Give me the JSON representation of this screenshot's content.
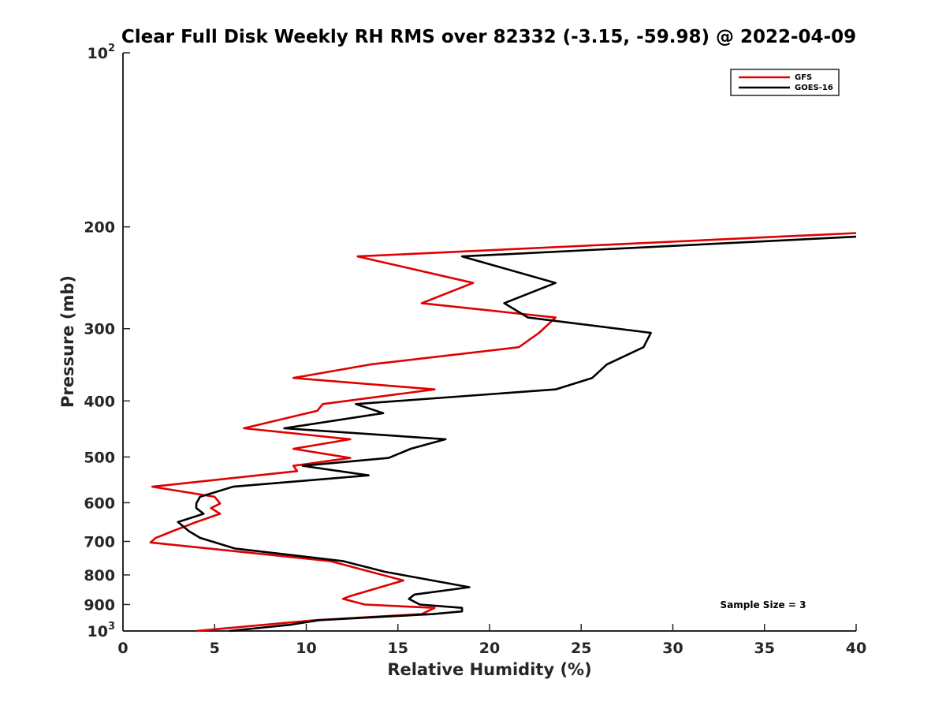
{
  "chart_data": {
    "type": "line",
    "title": "Clear Full Disk Weekly RH RMS over 82332 (-3.15, -59.98) @ 2022-04-09",
    "xlabel": "Relative Humidity (%)",
    "ylabel": "Pressure (mb)",
    "xlim": [
      0,
      40
    ],
    "ylim": [
      100,
      1000
    ],
    "y_scale": "log",
    "y_reversed": true,
    "grid": false,
    "legend_placement": "top-right",
    "x_ticks": [
      "0",
      "5",
      "10",
      "15",
      "20",
      "25",
      "30",
      "35",
      "40"
    ],
    "y_ticks": [
      {
        "value": 100,
        "base": "10",
        "exp": "2"
      },
      {
        "value": 200,
        "label": "200"
      },
      {
        "value": 300,
        "label": "300"
      },
      {
        "value": 400,
        "label": "400"
      },
      {
        "value": 500,
        "label": "500"
      },
      {
        "value": 600,
        "label": "600"
      },
      {
        "value": 700,
        "label": "700"
      },
      {
        "value": 800,
        "label": "800"
      },
      {
        "value": 900,
        "label": "900"
      },
      {
        "value": 1000,
        "base": "10",
        "exp": "3"
      }
    ],
    "annotation": "Sample Size = 3",
    "series": [
      {
        "name": "GFS",
        "color": "#e00000",
        "points": [
          [
            40.0,
            205
          ],
          [
            12.8,
            225
          ],
          [
            19.1,
            250
          ],
          [
            16.3,
            271
          ],
          [
            23.6,
            287
          ],
          [
            22.7,
            305
          ],
          [
            21.6,
            323
          ],
          [
            13.5,
            346
          ],
          [
            9.3,
            365
          ],
          [
            17.0,
            382
          ],
          [
            10.9,
            405
          ],
          [
            10.6,
            416
          ],
          [
            6.6,
            446
          ],
          [
            12.4,
            466
          ],
          [
            9.3,
            484
          ],
          [
            12.4,
            502
          ],
          [
            9.3,
            518
          ],
          [
            9.5,
            529
          ],
          [
            1.6,
            563
          ],
          [
            5.0,
            586
          ],
          [
            5.3,
            602
          ],
          [
            4.8,
            613
          ],
          [
            5.3,
            627
          ],
          [
            4.0,
            648
          ],
          [
            2.7,
            672
          ],
          [
            1.8,
            690
          ],
          [
            1.5,
            703
          ],
          [
            11.3,
            757
          ],
          [
            15.3,
            818
          ],
          [
            12.4,
            870
          ],
          [
            12.0,
            880
          ],
          [
            13.2,
            900
          ],
          [
            17.0,
            912
          ],
          [
            16.3,
            935
          ],
          [
            10.5,
            958
          ],
          [
            4.0,
            1000
          ]
        ]
      },
      {
        "name": "GOES-16",
        "color": "#000000",
        "points": [
          [
            40.0,
            208
          ],
          [
            18.5,
            225
          ],
          [
            23.6,
            250
          ],
          [
            20.8,
            271
          ],
          [
            22.1,
            287
          ],
          [
            28.8,
            305
          ],
          [
            28.4,
            323
          ],
          [
            26.4,
            346
          ],
          [
            25.6,
            365
          ],
          [
            23.6,
            382
          ],
          [
            12.7,
            405
          ],
          [
            14.2,
            420
          ],
          [
            8.8,
            446
          ],
          [
            17.6,
            466
          ],
          [
            15.7,
            484
          ],
          [
            14.5,
            502
          ],
          [
            9.8,
            518
          ],
          [
            13.4,
            538
          ],
          [
            6.0,
            563
          ],
          [
            4.2,
            586
          ],
          [
            4.0,
            602
          ],
          [
            4.0,
            613
          ],
          [
            4.4,
            627
          ],
          [
            3.0,
            648
          ],
          [
            3.6,
            672
          ],
          [
            4.2,
            690
          ],
          [
            6.1,
            720
          ],
          [
            12.0,
            757
          ],
          [
            14.3,
            790
          ],
          [
            16.9,
            818
          ],
          [
            18.9,
            840
          ],
          [
            15.9,
            865
          ],
          [
            15.6,
            880
          ],
          [
            16.2,
            900
          ],
          [
            18.5,
            912
          ],
          [
            18.5,
            925
          ],
          [
            16.9,
            935
          ],
          [
            10.7,
            958
          ],
          [
            9.2,
            975
          ],
          [
            5.8,
            1000
          ]
        ]
      }
    ]
  }
}
